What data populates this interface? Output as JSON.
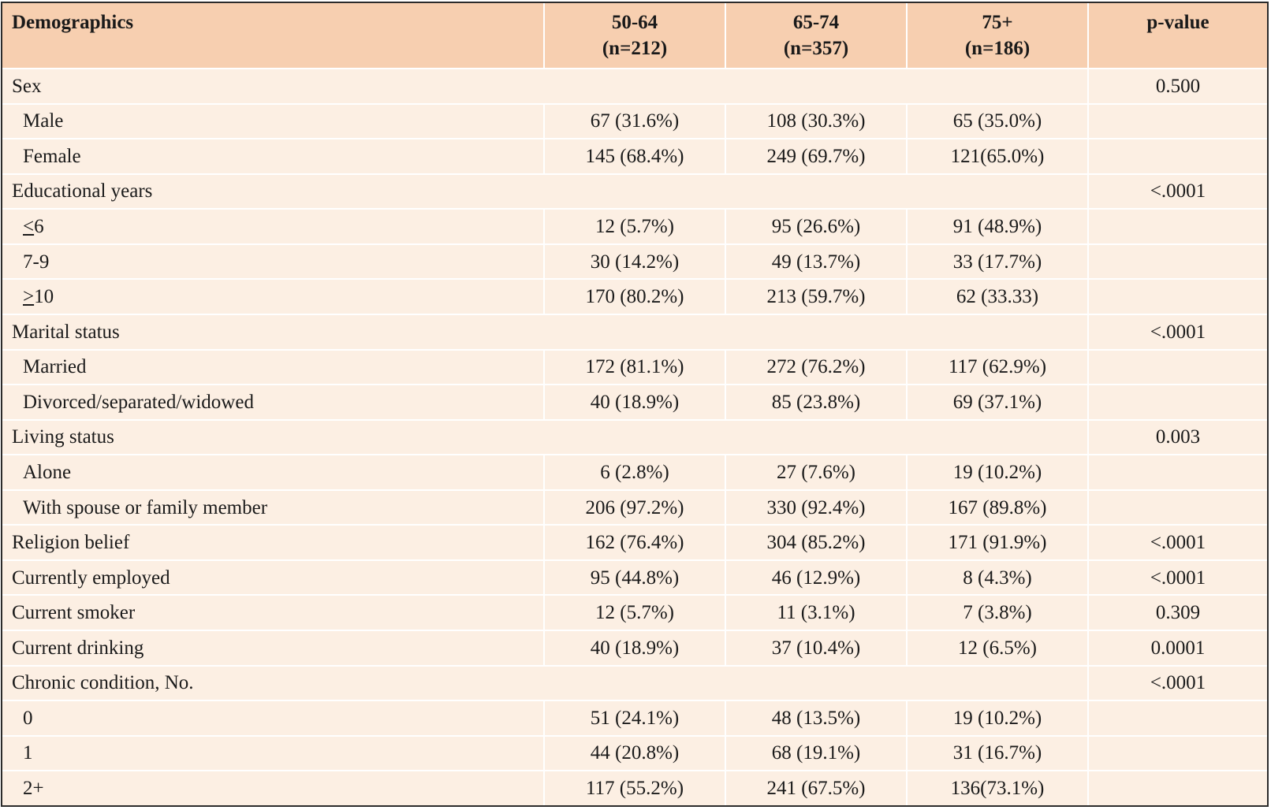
{
  "header": {
    "demographics": "Demographics",
    "groups": [
      {
        "range": "50-64",
        "n": "(n=212)"
      },
      {
        "range": "65-74",
        "n": "(n=357)"
      },
      {
        "range": "75+",
        "n": "(n=186)"
      }
    ],
    "pvalue": "p-value"
  },
  "rows": {
    "sex": {
      "label": "Sex",
      "p": "0.500"
    },
    "male": {
      "label": "Male",
      "v": [
        "67 (31.6%)",
        "108 (30.3%)",
        "65 (35.0%)"
      ]
    },
    "female": {
      "label": "Female",
      "v": [
        "145 (68.4%)",
        "249 (69.7%)",
        "121(65.0%)"
      ]
    },
    "edu": {
      "label": "Educational years",
      "p": "<.0001"
    },
    "edu_le6": {
      "sym": "<",
      "num": "6",
      "v": [
        "12 (5.7%)",
        "95 (26.6%)",
        "91 (48.9%)"
      ]
    },
    "edu_7_9": {
      "label": "7-9",
      "v": [
        "30 (14.2%)",
        "49 (13.7%)",
        "33 (17.7%)"
      ]
    },
    "edu_ge10": {
      "sym": ">",
      "num": "10",
      "v": [
        "170 (80.2%)",
        "213 (59.7%)",
        "62 (33.33)"
      ]
    },
    "marital": {
      "label": "Marital status",
      "p": "<.0001"
    },
    "married": {
      "label": "Married",
      "v": [
        "172 (81.1%)",
        "272 (76.2%)",
        "117 (62.9%)"
      ]
    },
    "divorced": {
      "label": "Divorced/separated/widowed",
      "v": [
        "40 (18.9%)",
        "85 (23.8%)",
        "69 (37.1%)"
      ]
    },
    "living": {
      "label": "Living status",
      "p": "0.003"
    },
    "alone": {
      "label": "Alone",
      "v": [
        "6 (2.8%)",
        "27 (7.6%)",
        "19 (10.2%)"
      ]
    },
    "with_spouse": {
      "label": "With spouse or family member",
      "v": [
        "206 (97.2%)",
        "330 (92.4%)",
        "167 (89.8%)"
      ]
    },
    "religion": {
      "label": "Religion belief",
      "v": [
        "162 (76.4%)",
        "304 (85.2%)",
        "171 (91.9%)"
      ],
      "p": "<.0001"
    },
    "employed": {
      "label": "Currently employed",
      "v": [
        "95 (44.8%)",
        "46 (12.9%)",
        "8 (4.3%)"
      ],
      "p": "<.0001"
    },
    "smoker": {
      "label": "Current smoker",
      "v": [
        "12 (5.7%)",
        "11 (3.1%)",
        "7 (3.8%)"
      ],
      "p": "0.309"
    },
    "drinking": {
      "label": "Current drinking",
      "v": [
        "40 (18.9%)",
        "37 (10.4%)",
        "12 (6.5%)"
      ],
      "p": "0.0001"
    },
    "chronic": {
      "label": "Chronic condition, No.",
      "p": "<.0001"
    },
    "chronic_0": {
      "label": "0",
      "v": [
        "51 (24.1%)",
        "48 (13.5%)",
        "19 (10.2%)"
      ]
    },
    "chronic_1": {
      "label": "1",
      "v": [
        "44 (20.8%)",
        "68 (19.1%)",
        "31 (16.7%)"
      ]
    },
    "chronic_2": {
      "label": "2+",
      "v": [
        "117 (55.2%)",
        "241 (67.5%)",
        "136(73.1%)"
      ]
    }
  }
}
